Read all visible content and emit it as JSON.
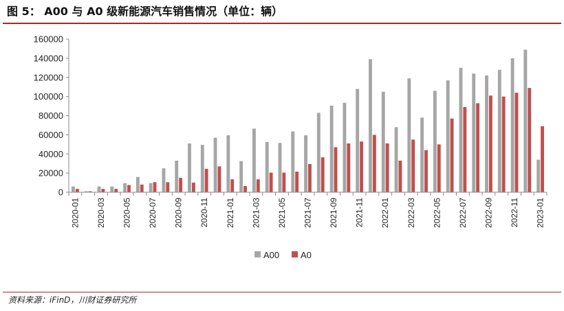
{
  "header": {
    "title": "图 5： A00 与 A0 级新能源汽车销售情况（单位：辆）"
  },
  "footer": {
    "source": "资料来源：iFinD，川财证券研究所"
  },
  "colors": {
    "A00": "#a6a6a6",
    "A0": "#c0504d",
    "accent_rule": "#b22222",
    "axis": "#888888"
  },
  "chart_data": {
    "type": "bar",
    "ylim": [
      0,
      160000
    ],
    "yticks": [
      "0",
      "20000",
      "40000",
      "60000",
      "80000",
      "100000",
      "120000",
      "140000",
      "160000"
    ],
    "yticks_values": [
      0,
      20000,
      40000,
      60000,
      80000,
      100000,
      120000,
      140000,
      160000
    ],
    "categories": [
      "2020-01",
      "2020-02",
      "2020-03",
      "2020-04",
      "2020-05",
      "2020-06",
      "2020-07",
      "2020-08",
      "2020-09",
      "2020-10",
      "2020-11",
      "2020-12",
      "2021-01",
      "2021-02",
      "2021-03",
      "2021-04",
      "2021-05",
      "2021-06",
      "2021-07",
      "2021-08",
      "2021-09",
      "2021-10",
      "2021-11",
      "2021-12",
      "2022-01",
      "2022-02",
      "2022-03",
      "2022-04",
      "2022-05",
      "2022-06",
      "2022-07",
      "2022-08",
      "2022-09",
      "2022-10",
      "2022-11",
      "2022-12",
      "2023-01"
    ],
    "xtick_labels": [
      "2020-01",
      "2020-03",
      "2020-05",
      "2020-07",
      "2020-09",
      "2020-11",
      "2021-01",
      "2021-03",
      "2021-05",
      "2021-07",
      "2021-09",
      "2021-11",
      "2022-01",
      "2022-03",
      "2022-05",
      "2022-07",
      "2022-09",
      "2022-11",
      "2023-01"
    ],
    "series": [
      {
        "name": "A00",
        "values": [
          6000,
          1000,
          6000,
          6000,
          9500,
          16000,
          9500,
          25000,
          33000,
          51000,
          49500,
          57000,
          59500,
          32500,
          66500,
          52500,
          51500,
          63500,
          59500,
          83000,
          90500,
          93500,
          108000,
          139000,
          105000,
          68000,
          119000,
          78000,
          106000,
          117000,
          130000,
          124000,
          122000,
          128000,
          140000,
          149000,
          34000
        ]
      },
      {
        "name": "A0",
        "values": [
          3500,
          1000,
          3500,
          3500,
          7500,
          8000,
          10500,
          10500,
          15000,
          10000,
          24500,
          27000,
          13500,
          6500,
          13500,
          20500,
          20500,
          21500,
          29500,
          36500,
          47000,
          51000,
          53000,
          60000,
          51000,
          33000,
          55000,
          44000,
          50000,
          77000,
          89000,
          93000,
          101000,
          100000,
          104000,
          109000,
          69000
        ]
      }
    ],
    "legend_position": "bottom-center",
    "grid": false
  }
}
